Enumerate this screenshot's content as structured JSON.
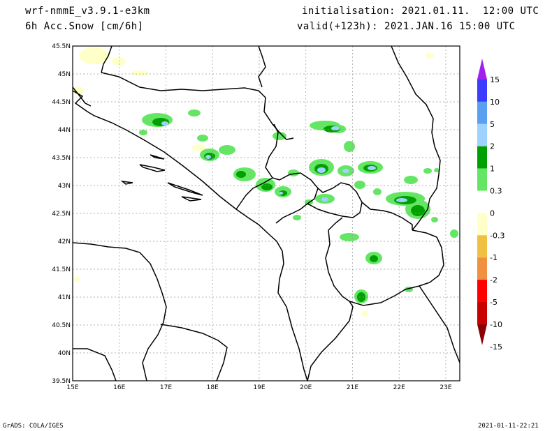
{
  "header": {
    "model": "wrf-nmmE_v3.9.1-e3km",
    "field": "6h Acc.Snow [cm/6h]",
    "init": "initialisation: 2021.01.11.  12:00 UTC",
    "valid": "valid(+123h): 2021.JAN.16 15:00 UTC"
  },
  "footer": {
    "left": "GrADS: COLA/IGES",
    "right": "2021-01-11-22:21"
  },
  "map": {
    "lon_labels": [
      "15E",
      "16E",
      "17E",
      "18E",
      "19E",
      "20E",
      "21E",
      "22E",
      "23E"
    ],
    "lat_labels": [
      "45.5N",
      "45N",
      "44.5N",
      "44N",
      "43.5N",
      "43N",
      "42.5N",
      "42N",
      "41.5N",
      "41N",
      "40.5N",
      "40N",
      "39.5N"
    ],
    "lon_range": [
      15,
      23.3
    ],
    "lat_range": [
      39.5,
      45.5
    ]
  },
  "colorbar": {
    "labels": [
      "15",
      "10",
      "5",
      "2",
      "1",
      "0.3",
      "0",
      "-0.3",
      "-1",
      "-2",
      "-5",
      "-10",
      "-15"
    ],
    "colors": [
      "#a020f0",
      "#3c3cff",
      "#5aa0f0",
      "#a0d2ff",
      "#00a000",
      "#64e664",
      "#ffffff",
      "#ffffc8",
      "#f0c040",
      "#f09040",
      "#ff0000",
      "#c80000",
      "#8c0000"
    ]
  }
}
